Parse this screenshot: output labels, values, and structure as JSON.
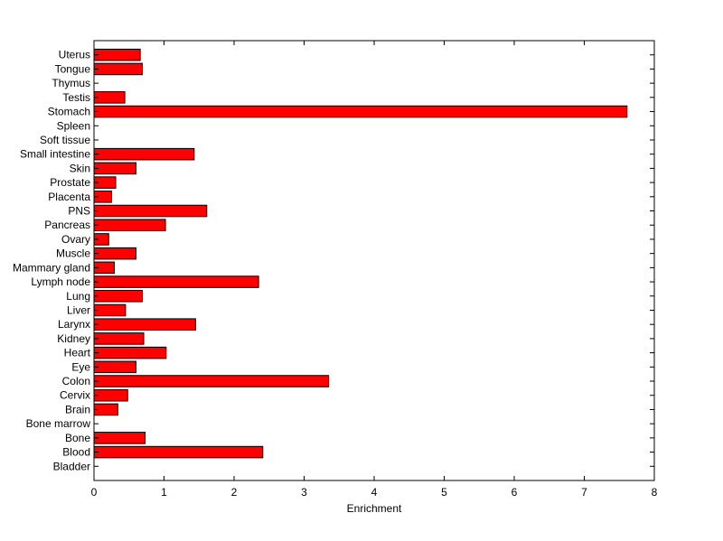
{
  "chart_data": {
    "type": "bar",
    "orientation": "horizontal",
    "title": "",
    "xlabel": "Enrichment",
    "ylabel": "",
    "xlim": [
      0,
      8
    ],
    "xticks": [
      "0",
      "1",
      "2",
      "3",
      "4",
      "5",
      "6",
      "7",
      "8"
    ],
    "grid": false,
    "legend": "none",
    "bar_color": "#ff0000",
    "bar_edge_color": "#000000",
    "categories": [
      "Bladder",
      "Blood",
      "Bone",
      "Bone marrow",
      "Brain",
      "Cervix",
      "Colon",
      "Eye",
      "Heart",
      "Kidney",
      "Larynx",
      "Liver",
      "Lung",
      "Lymph node",
      "Mammary gland",
      "Muscle",
      "Ovary",
      "Pancreas",
      "PNS",
      "Placenta",
      "Prostate",
      "Skin",
      "Small intestine",
      "Soft tissue",
      "Spleen",
      "Stomach",
      "Testis",
      "Thymus",
      "Tongue",
      "Uterus"
    ],
    "values": [
      0,
      2.41,
      0.73,
      0,
      0.34,
      0.48,
      3.35,
      0.6,
      1.03,
      0.71,
      1.45,
      0.45,
      0.69,
      2.35,
      0.29,
      0.6,
      0.21,
      1.02,
      1.61,
      0.25,
      0.31,
      0.6,
      1.43,
      0,
      0,
      7.61,
      0.44,
      0,
      0.69,
      0.66
    ]
  }
}
